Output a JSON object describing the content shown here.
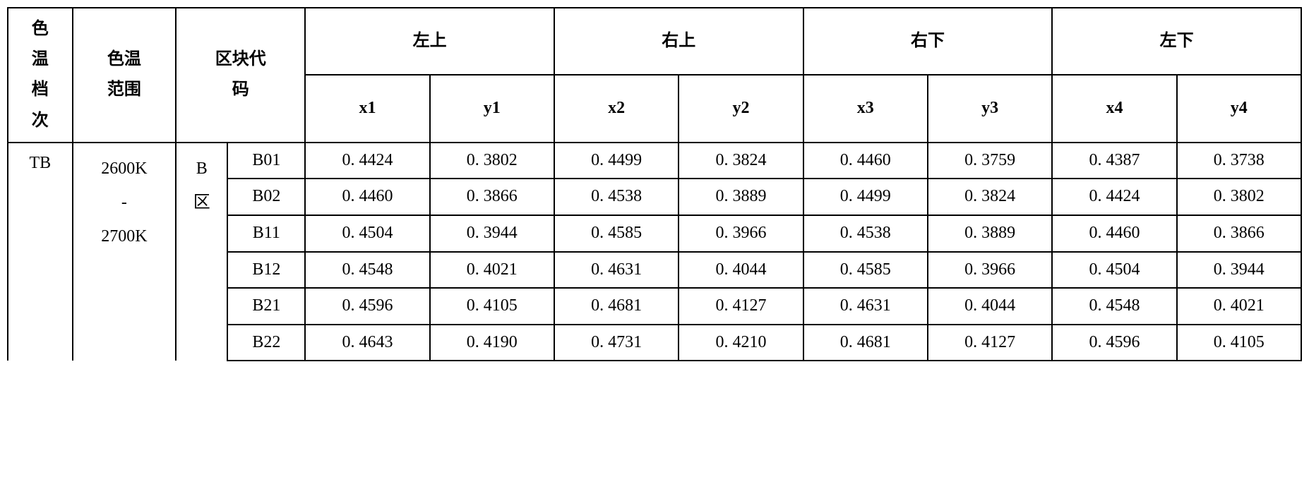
{
  "table": {
    "headers": {
      "grade": "色\n温\n档\n次",
      "range": "色温\n范围",
      "region_code": "区块代\n码",
      "top_left": "左上",
      "top_right": "右上",
      "bottom_right": "右下",
      "bottom_left": "左下",
      "x1": "x1",
      "y1": "y1",
      "x2": "x2",
      "y2": "y2",
      "x3": "x3",
      "y3": "y3",
      "x4": "x4",
      "y4": "y4"
    },
    "grade": "TB",
    "range": "2600K\n-\n2700K",
    "region": "B\n区",
    "rows": [
      {
        "code": "B01",
        "x1": "0. 4424",
        "y1": "0. 3802",
        "x2": "0. 4499",
        "y2": "0. 3824",
        "x3": "0. 4460",
        "y3": "0. 3759",
        "x4": "0. 4387",
        "y4": "0. 3738"
      },
      {
        "code": "B02",
        "x1": "0. 4460",
        "y1": "0. 3866",
        "x2": "0. 4538",
        "y2": "0. 3889",
        "x3": "0. 4499",
        "y3": "0. 3824",
        "x4": "0. 4424",
        "y4": "0. 3802"
      },
      {
        "code": "B11",
        "x1": "0. 4504",
        "y1": "0. 3944",
        "x2": "0. 4585",
        "y2": "0. 3966",
        "x3": "0. 4538",
        "y3": "0. 3889",
        "x4": "0. 4460",
        "y4": "0. 3866"
      },
      {
        "code": "B12",
        "x1": "0. 4548",
        "y1": "0. 4021",
        "x2": "0. 4631",
        "y2": "0. 4044",
        "x3": "0. 4585",
        "y3": "0. 3966",
        "x4": "0. 4504",
        "y4": "0. 3944"
      },
      {
        "code": "B21",
        "x1": "0. 4596",
        "y1": "0. 4105",
        "x2": "0. 4681",
        "y2": "0. 4127",
        "x3": "0. 4631",
        "y3": "0. 4044",
        "x4": "0. 4548",
        "y4": "0. 4021"
      },
      {
        "code": "B22",
        "x1": "0. 4643",
        "y1": "0. 4190",
        "x2": "0. 4731",
        "y2": "0. 4210",
        "x3": "0. 4681",
        "y3": "0. 4127",
        "x4": "0. 4596",
        "y4": "0. 4105"
      }
    ]
  },
  "styling": {
    "border_color": "#000000",
    "border_width": 2,
    "background_color": "#ffffff",
    "text_color": "#000000",
    "header_font": "SimSun",
    "data_font": "Times New Roman",
    "font_size_header": 24,
    "font_size_data": 24
  }
}
